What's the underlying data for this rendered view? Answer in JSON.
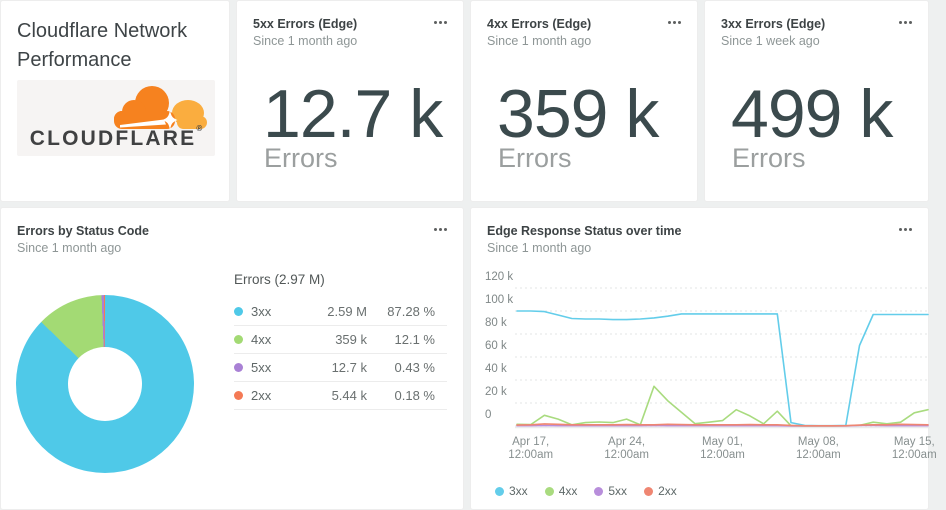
{
  "title_card": {
    "heading": "Cloudflare Network Performance",
    "logo": {
      "icon": "cloudflare-cloud-icon",
      "wordmark": "CLOUDFLARE",
      "mark": "®"
    }
  },
  "metric_cards": [
    {
      "title": "5xx Errors (Edge)",
      "subtitle": "Since 1 month ago",
      "value": "12.7 k",
      "unit": "Errors",
      "menu_icon": "ellipsis-icon"
    },
    {
      "title": "4xx Errors (Edge)",
      "subtitle": "Since 1 month ago",
      "value": "359 k",
      "unit": "Errors",
      "menu_icon": "ellipsis-icon"
    },
    {
      "title": "3xx Errors (Edge)",
      "subtitle": "Since 1 week ago",
      "value": "499 k",
      "unit": "Errors",
      "menu_icon": "ellipsis-icon"
    }
  ],
  "donut_card": {
    "title": "Errors by Status Code",
    "subtitle": "Since 1 month ago",
    "menu_icon": "ellipsis-icon"
  },
  "timeseries_card": {
    "title": "Edge Response Status over time",
    "subtitle": "Since 1 month ago",
    "menu_icon": "ellipsis-icon"
  },
  "chart_data": [
    {
      "type": "pie",
      "donut": true,
      "title": "Errors by Status Code",
      "subtitle": "Since 1 month ago",
      "total_label": "Errors (2.97 M)",
      "slices": [
        {
          "label": "3xx",
          "value": "2.59 M",
          "percent": 87.28,
          "percent_label": "87.28 %",
          "color": "#4fc9e8"
        },
        {
          "label": "4xx",
          "value": "359 k",
          "percent": 12.1,
          "percent_label": "12.1 %",
          "color": "#a3da74"
        },
        {
          "label": "5xx",
          "value": "12.7 k",
          "percent": 0.43,
          "percent_label": "0.43 %",
          "color": "#a981d5"
        },
        {
          "label": "2xx",
          "value": "5.44 k",
          "percent": 0.18,
          "percent_label": "0.18 %",
          "color": "#f47a55"
        }
      ]
    },
    {
      "type": "line",
      "title": "Edge Response Status over time",
      "subtitle": "Since 1 month ago",
      "unit": "thousands",
      "x": [
        "Apr 16",
        "Apr 17",
        "Apr 18",
        "Apr 19",
        "Apr 20",
        "Apr 21",
        "Apr 22",
        "Apr 23",
        "Apr 24",
        "Apr 25",
        "Apr 26",
        "Apr 27",
        "Apr 28",
        "Apr 29",
        "Apr 30",
        "May 01",
        "May 02",
        "May 03",
        "May 04",
        "May 05",
        "May 06",
        "May 07",
        "May 08",
        "May 09",
        "May 10",
        "May 11",
        "May 12",
        "May 13",
        "May 14",
        "May 15",
        "May 16"
      ],
      "x_tick_indices": [
        1,
        8,
        15,
        22,
        29
      ],
      "x_tick_labels": [
        [
          "Apr 17,",
          "12:00am"
        ],
        [
          "Apr 24,",
          "12:00am"
        ],
        [
          "May 01,",
          "12:00am"
        ],
        [
          "May 08,",
          "12:00am"
        ],
        [
          "May 15,",
          "12:00am"
        ]
      ],
      "ylim": [
        0,
        120000
      ],
      "y_ticks": [
        0,
        20,
        40,
        60,
        80,
        100,
        120
      ],
      "y_tick_labels": [
        "0",
        "20 k",
        "40 k",
        "60 k",
        "80 k",
        "100 k",
        "120 k"
      ],
      "grid": "dashed-horizontal",
      "legend_position": "bottom",
      "series": [
        {
          "name": "3xx",
          "color": "#63cdea",
          "values": [
            100,
            100,
            99.5,
            96.5,
            93.5,
            93,
            93,
            92.5,
            92.5,
            93,
            94,
            95.5,
            97.5,
            97.5,
            97.5,
            97.5,
            97.5,
            97.5,
            97.5,
            97.5,
            3,
            0.5,
            0.3,
            0.3,
            0.5,
            70,
            97,
            97,
            97,
            97,
            97
          ]
        },
        {
          "name": "4xx",
          "color": "#a9db7f",
          "values": [
            1.5,
            1.2,
            9.3,
            6,
            1,
            3,
            3.5,
            3,
            6,
            1,
            34.5,
            22,
            12,
            2,
            3.3,
            4.7,
            14.2,
            8.8,
            1.9,
            12.9,
            0.2,
            0.1,
            0.1,
            0.1,
            0.2,
            0.5,
            3.3,
            1.9,
            3.3,
            11.5,
            14.2
          ]
        },
        {
          "name": "5xx",
          "color": "#b88edb",
          "values": [
            0.3,
            0.3,
            0.4,
            0.3,
            0.3,
            0.3,
            0.3,
            0.3,
            0.3,
            0.3,
            0.4,
            0.3,
            0.3,
            0.3,
            0.3,
            0.3,
            0.3,
            0.3,
            0.3,
            0.3,
            0.1,
            0.1,
            0.1,
            0.1,
            0.1,
            0.5,
            0.4,
            0.3,
            0.3,
            0.3,
            0.3
          ]
        },
        {
          "name": "2xx",
          "color": "#ef8672",
          "values": [
            0.8,
            1,
            1.8,
            1.5,
            1,
            1,
            1,
            1,
            1.2,
            1,
            1,
            1.5,
            1.2,
            1,
            1,
            1,
            1,
            1.2,
            1,
            1,
            0.5,
            0.2,
            0.2,
            0.2,
            0.3,
            0.8,
            1,
            1,
            1.5,
            1.2,
            1
          ]
        }
      ]
    }
  ]
}
